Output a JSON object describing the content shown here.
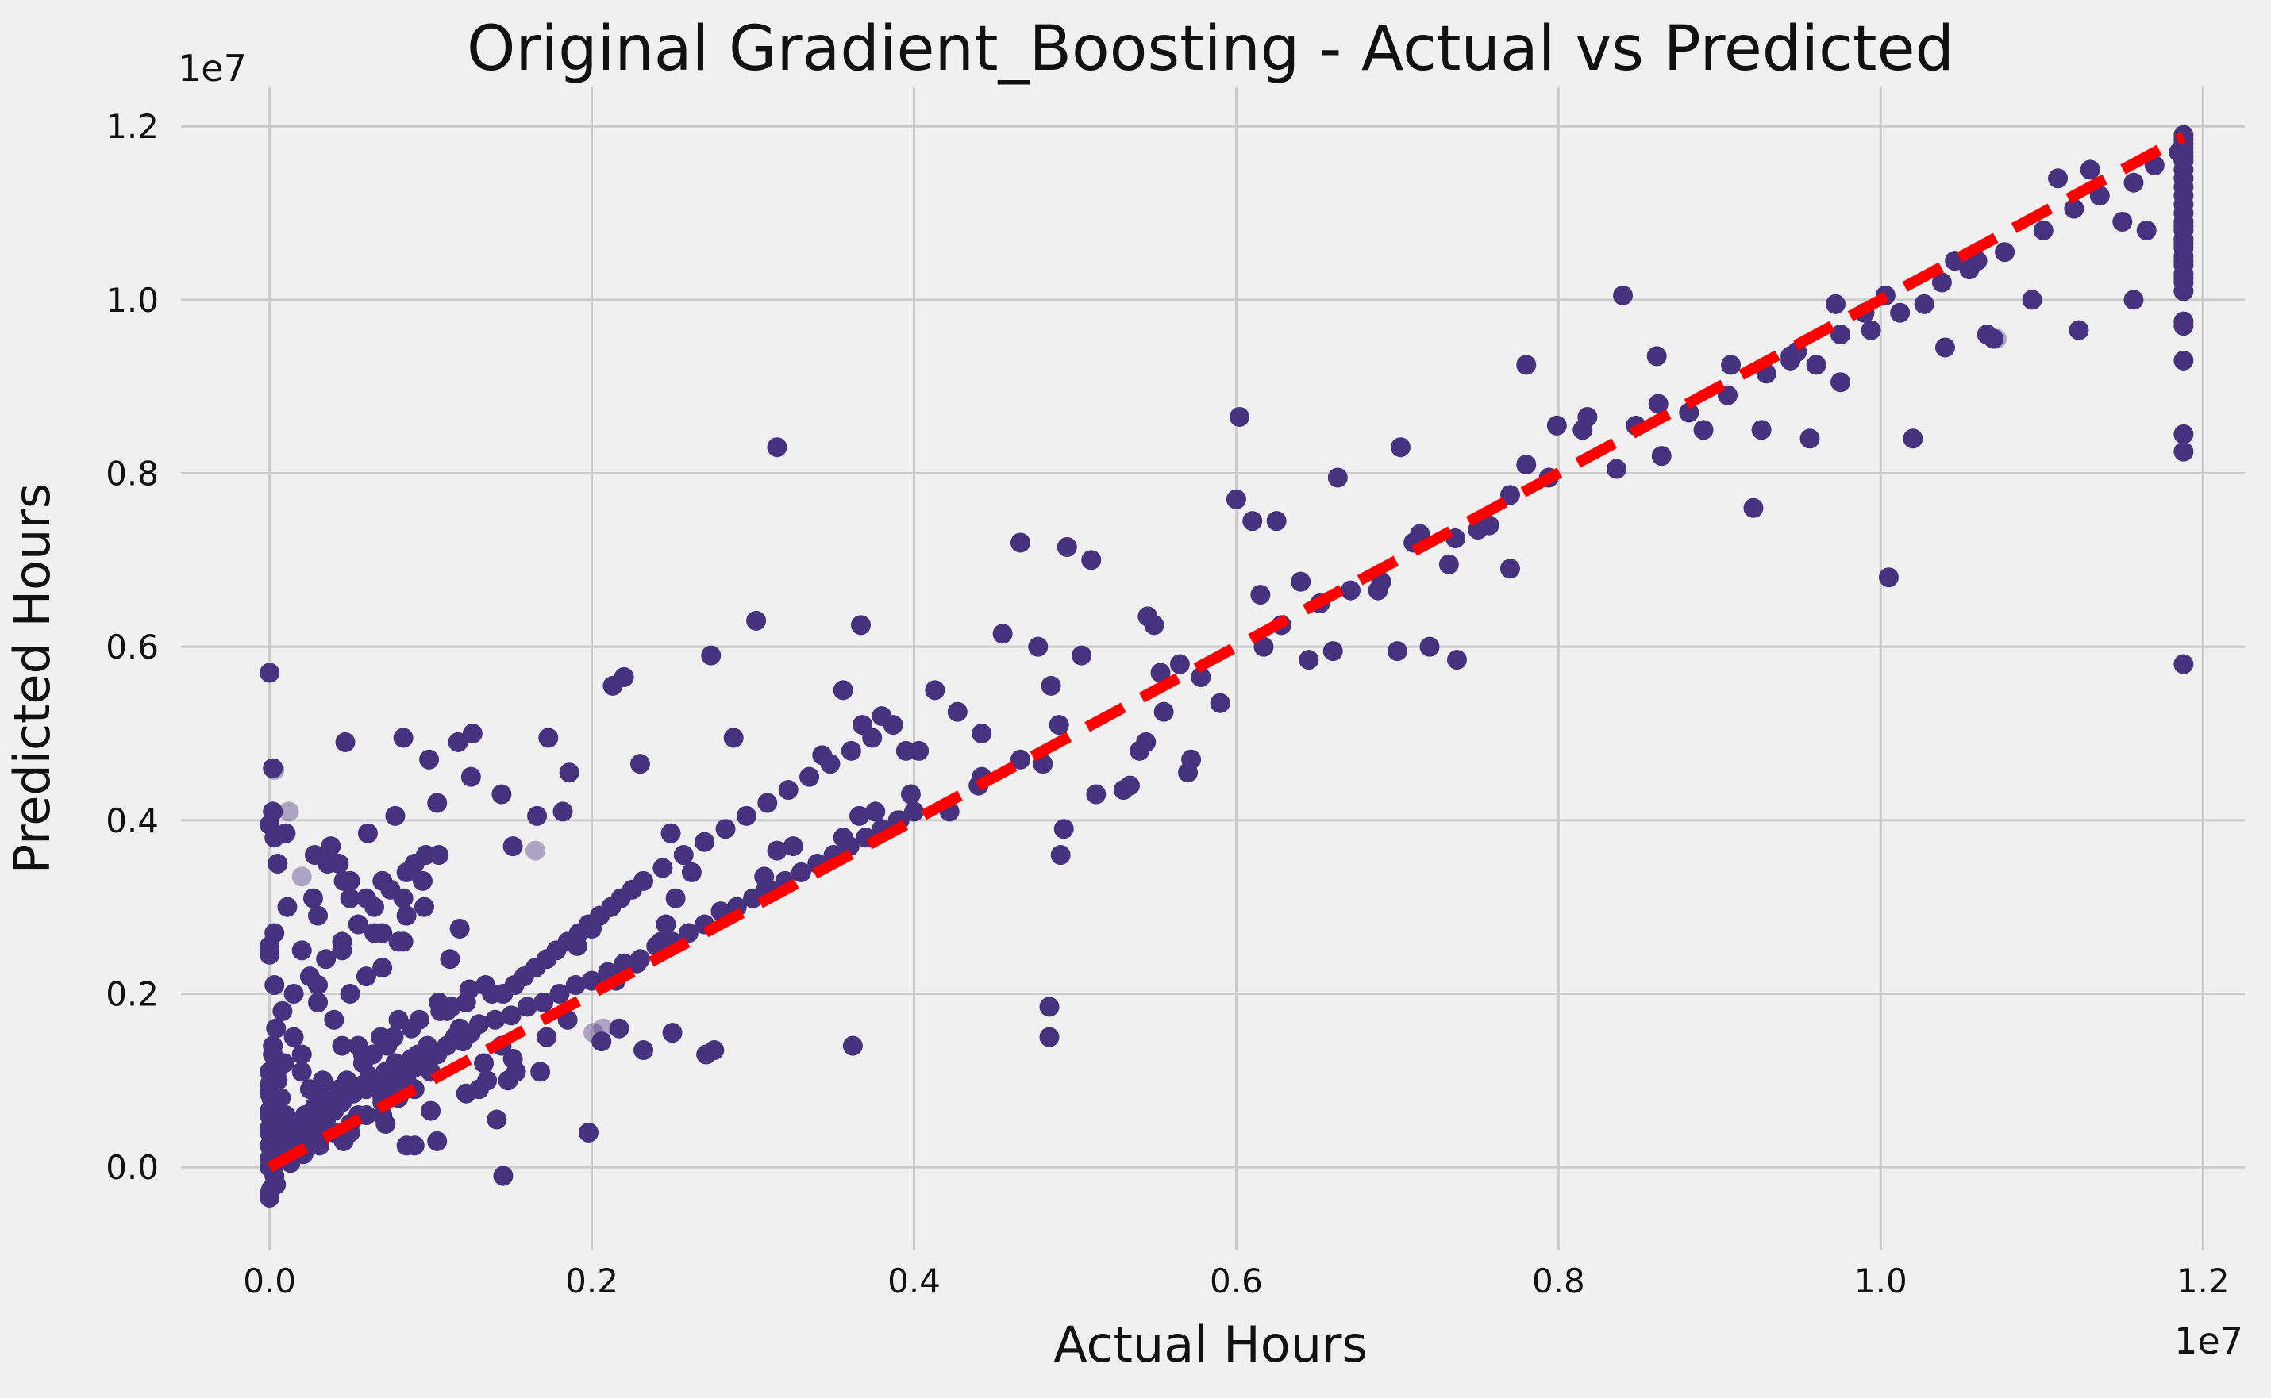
{
  "chart_data": {
    "type": "scatter",
    "title": "Original Gradient_Boosting - Actual vs Predicted",
    "xlabel": "Actual Hours",
    "ylabel": "Predicted Hours",
    "x_offset_label": "1e7",
    "y_offset_label": "1e7",
    "xlim": [
      -0.055,
      1.226
    ],
    "ylim": [
      -0.095,
      1.245
    ],
    "x_ticks": [
      0.0,
      0.2,
      0.4,
      0.6,
      0.8,
      1.0,
      1.2
    ],
    "x_tick_labels": [
      "0.0",
      "0.2",
      "0.4",
      "0.6",
      "0.8",
      "1.0",
      "1.2"
    ],
    "y_ticks": [
      0.0,
      0.2,
      0.4,
      0.6,
      0.8,
      1.0,
      1.2
    ],
    "y_tick_labels": [
      "0.0",
      "0.2",
      "0.4",
      "0.6",
      "0.8",
      "1.0",
      "1.2"
    ],
    "grid": true,
    "point_color": "#46327e",
    "line_color": "#ff0000",
    "reference_line": {
      "style": "dashed",
      "from": [
        0.0,
        0.0
      ],
      "to": [
        1.188,
        1.188
      ]
    },
    "series": [
      {
        "x": [
          0.0,
          0.0,
          0.0,
          0.0,
          0.003,
          0.002,
          0.004,
          0.005,
          0.007,
          0.01,
          0.015,
          0.02,
          0.025,
          0.03,
          0.035,
          0.04,
          0.045,
          0.05,
          0.055,
          0.06,
          0.065,
          0.07,
          0.075,
          0.08,
          0.085,
          0.09,
          0.095,
          0.1,
          0.01,
          0.02,
          0.03,
          0.04,
          0.05,
          0.06,
          0.07,
          0.08,
          0.09,
          0.1,
          0.002,
          0.004,
          0.006,
          0.008,
          0.012,
          0.018,
          0.022,
          0.028,
          0.033,
          0.038,
          0.043,
          0.048,
          0.052,
          0.058,
          0.062,
          0.068,
          0.072,
          0.078,
          0.082,
          0.088,
          0.092,
          0.098,
          0.104,
          0.11,
          0.115,
          0.12,
          0.125,
          0.13,
          0.14,
          0.15,
          0.16,
          0.17,
          0.18,
          0.19,
          0.2,
          0.21,
          0.22,
          0.23,
          0.24,
          0.25,
          0.26,
          0.27,
          0.28,
          0.29,
          0.3,
          0.31,
          0.32,
          0.33,
          0.34,
          0.35,
          0.36,
          0.37,
          0.38,
          0.39,
          0.4,
          0.004,
          0.008,
          0.015,
          0.025,
          0.035,
          0.045,
          0.055,
          0.065,
          0.075,
          0.085,
          0.095,
          0.105,
          0.0,
          0.002,
          0.001,
          0.003,
          0.001,
          0.0,
          0.002,
          0.001,
          0.003,
          0.001,
          0.0,
          0.002,
          0.0,
          0.001,
          0.001,
          0.015,
          0.045,
          0.065,
          0.085,
          0.03,
          0.05,
          0.07,
          0.04,
          0.06,
          0.08,
          0.02,
          0.002,
          0.002,
          0.003,
          0.047,
          0.027,
          0.036,
          0.083,
          0.061,
          0.099,
          0.126,
          0.03,
          0.07,
          0.05,
          0.09,
          0.112,
          0.118,
          0.134,
          0.105,
          0.08,
          0.02,
          0.045,
          0.025,
          0.033,
          0.058,
          0.064,
          0.073,
          0.077,
          0.088,
          0.093,
          0.11,
          0.122,
          0.138,
          0.145,
          0.152,
          0.158,
          0.165,
          0.172,
          0.178,
          0.185,
          0.192,
          0.198,
          0.205,
          0.212,
          0.218,
          0.225,
          0.232,
          0.244,
          0.257,
          0.27,
          0.283,
          0.296,
          0.309,
          0.322,
          0.335,
          0.348,
          0.361,
          0.374,
          0.387,
          0.01,
          0.046,
          0.078,
          0.083,
          0.096,
          0.104,
          0.117,
          0.125,
          0.144,
          0.166,
          0.173,
          0.186,
          0.213,
          0.22,
          0.23,
          0.274,
          0.288,
          0.302,
          0.315,
          0.343,
          0.356,
          0.367,
          0.38,
          0.395,
          0.413,
          0.427,
          0.455,
          0.466,
          0.49,
          0.495,
          0.51,
          0.53,
          0.545,
          0.565,
          0.578,
          0.6,
          0.615,
          0.625,
          0.64,
          0.663,
          0.69,
          0.702,
          0.714,
          0.72,
          0.732,
          0.77,
          0.78,
          0.815,
          0.84,
          0.862,
          0.89,
          0.921,
          0.944,
          0.96,
          0.975,
          0.99,
          1.005,
          1.02,
          1.04,
          1.06,
          1.07,
          1.11,
          1.13,
          1.15,
          1.165,
          0.308,
          0.276,
          0.217,
          0.206,
          0.185,
          0.172,
          0.153,
          0.122,
          0.07,
          0.072,
          0.046,
          0.031,
          0.029,
          0.021,
          0.013,
          0.004,
          0.0,
          0.001,
          0.002,
          0.004,
          0.09,
          0.104,
          0.13,
          0.148,
          0.168,
          0.151,
          0.144,
          0.135,
          0.133,
          0.118,
          0.106,
          0.069,
          0.058,
          0.055,
          0.113,
          0.124,
          0.191,
          0.2,
          0.215,
          0.228,
          0.243,
          0.246,
          0.252,
          0.262,
          0.315,
          0.325,
          0.356,
          0.366,
          0.376,
          0.391,
          0.398,
          0.422,
          0.442,
          0.442,
          0.466,
          0.477,
          0.485,
          0.493,
          0.504,
          0.513,
          0.534,
          0.544,
          0.549,
          0.553,
          0.572,
          0.602,
          0.61,
          0.645,
          0.66,
          0.688,
          0.7,
          0.737,
          0.757,
          0.78,
          0.799,
          0.818,
          0.848,
          0.861,
          0.907,
          0.926,
          0.944,
          0.956,
          0.972,
          1.003,
          1.027,
          1.046,
          1.066,
          1.094,
          1.123,
          1.157,
          0.03,
          0.307,
          0.362,
          0.145,
          0.484,
          0.484,
          0.232,
          0.271,
          0.25,
          0.198,
          0.141,
          0.1,
          0.085,
          0.05,
          0.003,
          0.05,
          0.07,
          0.083,
          0.06,
          0.043,
          0.028,
          0.009,
          0.005,
          0.011,
          0.02,
          0.038,
          0.097,
          0.151,
          0.182,
          0.249,
          0.368,
          0.403,
          0.44,
          0.48,
          0.491,
          0.54,
          0.555,
          0.57,
          0.59,
          0.617,
          0.628,
          0.652,
          0.671,
          0.71,
          0.736,
          0.75,
          0.77,
          0.794,
          0.836,
          0.864,
          0.881,
          0.905,
          0.929,
          0.948,
          0.975,
          0.994,
          1.012,
          1.038,
          1.055,
          1.077,
          1.101,
          1.12,
          1.136,
          1.157,
          1.17,
          1.185,
          1.188,
          1.188,
          1.188,
          1.188,
          1.188,
          1.188,
          1.188,
          1.188,
          1.188,
          1.188,
          1.188,
          1.188,
          1.188,
          1.188,
          1.188,
          1.188,
          1.188,
          1.188,
          1.188,
          1.188,
          1.188,
          1.188,
          1.188,
          1.188,
          1.188,
          1.188,
          1.188,
          1.188,
          1.188,
          1.188,
          1.188,
          1.188,
          0.0,
          0.004,
          0.0,
          0.002,
          0.008,
          0.0,
          0.002,
          0.0,
          0.005,
          0.0,
          0.003,
          0.0,
          0.0,
          0.002,
          0.006,
          0.001
        ],
        "y": [
          0.57,
          0.395,
          0.255,
          0.245,
          0.21,
          0.14,
          0.12,
          0.1,
          0.08,
          0.06,
          0.04,
          0.03,
          0.05,
          0.07,
          0.055,
          0.065,
          0.075,
          0.085,
          0.06,
          0.09,
          0.1,
          0.08,
          0.095,
          0.11,
          0.1,
          0.115,
          0.12,
          0.13,
          0.02,
          0.035,
          0.045,
          0.04,
          0.05,
          0.06,
          0.075,
          0.08,
          0.09,
          0.11,
          0.0,
          0.01,
          0.02,
          0.03,
          0.04,
          0.05,
          0.06,
          0.07,
          0.08,
          0.075,
          0.09,
          0.1,
          0.085,
          0.095,
          0.105,
          0.1,
          0.11,
          0.12,
          0.115,
          0.125,
          0.13,
          0.14,
          0.13,
          0.14,
          0.15,
          0.145,
          0.155,
          0.165,
          0.17,
          0.175,
          0.185,
          0.19,
          0.2,
          0.21,
          0.215,
          0.225,
          0.235,
          0.24,
          0.255,
          0.26,
          0.27,
          0.28,
          0.295,
          0.3,
          0.31,
          0.32,
          0.33,
          0.34,
          0.35,
          0.36,
          0.37,
          0.38,
          0.39,
          0.4,
          0.41,
          0.16,
          0.18,
          0.2,
          0.22,
          0.24,
          0.26,
          0.28,
          0.3,
          0.32,
          0.34,
          0.33,
          0.36,
          0.04,
          0.02,
          0.0,
          -0.01,
          -0.025,
          -0.035,
          0.03,
          0.05,
          0.07,
          0.09,
          0.11,
          0.13,
          0.06,
          0.08,
          0.1,
          0.15,
          0.25,
          0.27,
          0.29,
          0.19,
          0.2,
          0.23,
          0.17,
          0.22,
          0.26,
          0.11,
          0.46,
          0.41,
          0.38,
          0.49,
          0.31,
          0.35,
          0.495,
          0.385,
          0.47,
          0.5,
          0.29,
          0.33,
          0.31,
          0.35,
          0.24,
          0.275,
          0.21,
          0.19,
          0.17,
          0.13,
          0.14,
          0.09,
          0.1,
          0.12,
          0.13,
          0.14,
          0.15,
          0.16,
          0.17,
          0.18,
          0.19,
          0.2,
          0.2,
          0.21,
          0.22,
          0.23,
          0.24,
          0.25,
          0.26,
          0.27,
          0.28,
          0.29,
          0.3,
          0.31,
          0.32,
          0.33,
          0.345,
          0.36,
          0.375,
          0.39,
          0.405,
          0.42,
          0.435,
          0.45,
          0.465,
          0.48,
          0.495,
          0.51,
          0.385,
          0.33,
          0.405,
          0.26,
          0.3,
          0.42,
          0.49,
          0.45,
          0.43,
          0.405,
          0.495,
          0.455,
          0.555,
          0.565,
          0.465,
          0.59,
          0.495,
          0.63,
          0.83,
          0.475,
          0.55,
          0.625,
          0.52,
          0.48,
          0.55,
          0.525,
          0.615,
          0.72,
          0.51,
          0.715,
          0.7,
          0.435,
          0.635,
          0.58,
          0.565,
          0.77,
          0.66,
          0.745,
          0.675,
          0.795,
          0.675,
          0.83,
          0.73,
          0.6,
          0.695,
          0.69,
          0.925,
          0.85,
          1.005,
          0.88,
          0.85,
          0.76,
          0.935,
          0.925,
          0.905,
          0.985,
          0.68,
          0.84,
          0.945,
          1.045,
          0.955,
          1.14,
          1.15,
          1.09,
          1.08,
          0.32,
          0.135,
          0.16,
          0.145,
          0.17,
          0.15,
          0.11,
          0.085,
          0.06,
          0.05,
          0.03,
          0.025,
          0.04,
          0.015,
          0.005,
          -0.02,
          -0.03,
          0.02,
          0.045,
          0.05,
          0.025,
          0.03,
          0.09,
          0.1,
          0.11,
          0.125,
          0.14,
          0.1,
          0.12,
          0.16,
          0.18,
          0.15,
          0.13,
          0.14,
          0.185,
          0.205,
          0.255,
          0.275,
          0.215,
          0.235,
          0.26,
          0.28,
          0.31,
          0.34,
          0.365,
          0.37,
          0.38,
          0.405,
          0.41,
          0.4,
          0.43,
          0.41,
          0.5,
          0.45,
          0.47,
          0.6,
          0.555,
          0.39,
          0.59,
          0.43,
          0.44,
          0.49,
          0.625,
          0.57,
          0.47,
          0.865,
          0.745,
          0.585,
          0.595,
          0.665,
          0.595,
          0.585,
          0.74,
          0.81,
          0.855,
          0.865,
          0.855,
          0.935,
          0.925,
          0.85,
          0.93,
          0.84,
          0.995,
          1.005,
          0.995,
          1.045,
          0.96,
          1.0,
          0.965,
          1.0,
          0.21,
          0.335,
          0.14,
          -0.01,
          0.185,
          0.15,
          0.135,
          0.13,
          0.155,
          0.04,
          0.055,
          0.065,
          0.025,
          0.04,
          0.27,
          0.33,
          0.27,
          0.31,
          0.31,
          0.35,
          0.36,
          0.12,
          0.35,
          0.3,
          0.25,
          0.37,
          0.36,
          0.37,
          0.41,
          0.385,
          0.51,
          0.48,
          0.44,
          0.465,
          0.36,
          0.48,
          0.525,
          0.455,
          0.535,
          0.6,
          0.625,
          0.65,
          0.665,
          0.72,
          0.725,
          0.735,
          0.775,
          0.795,
          0.805,
          0.82,
          0.87,
          0.89,
          0.915,
          0.94,
          0.96,
          0.965,
          0.985,
          1.02,
          1.035,
          1.055,
          1.08,
          1.105,
          1.12,
          1.135,
          1.155,
          1.17,
          1.185,
          1.18,
          1.17,
          1.16,
          1.15,
          1.14,
          1.13,
          1.12,
          1.11,
          1.1,
          1.09,
          1.08,
          1.07,
          1.06,
          1.05,
          1.04,
          1.03,
          1.02,
          1.01,
          1.085,
          1.065,
          1.045,
          1.025,
          0.975,
          0.97,
          0.93,
          0.845,
          0.825,
          0.58,
          1.19,
          1.175,
          1.165,
          0.0,
          0.005,
          0.01,
          0.015,
          0.02,
          0.025,
          0.035,
          0.045,
          0.055,
          0.065,
          0.075,
          0.085,
          0.095,
          0.105,
          0.115,
          0.005
        ]
      }
    ],
    "faint_points": {
      "x": [
        0.003,
        0.012,
        0.02,
        0.0,
        0.165,
        0.201,
        0.207,
        1.072
      ],
      "y": [
        0.458,
        0.41,
        0.335,
        0.11,
        0.365,
        0.155,
        0.16,
        0.955
      ]
    }
  }
}
